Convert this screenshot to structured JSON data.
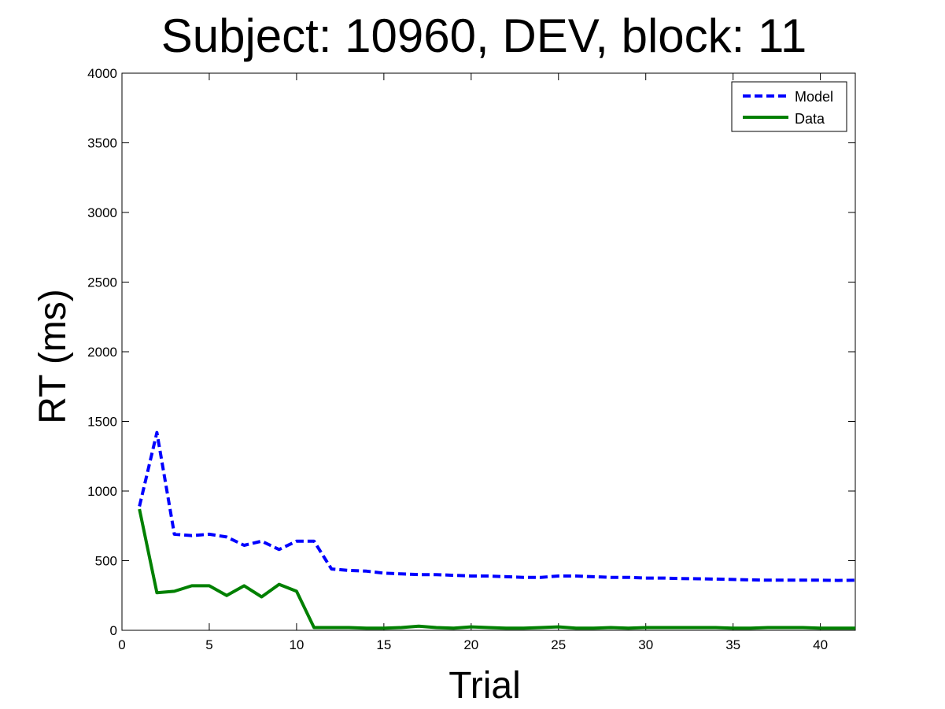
{
  "chart_data": {
    "type": "line",
    "title": "Subject: 10960, DEV, block: 11",
    "xlabel": "Trial",
    "ylabel": "RT (ms)",
    "xlim": [
      0,
      42
    ],
    "ylim": [
      0,
      4000
    ],
    "x_ticks": [
      0,
      5,
      10,
      15,
      20,
      25,
      30,
      35,
      40
    ],
    "y_ticks": [
      0,
      500,
      1000,
      1500,
      2000,
      2500,
      3000,
      3500,
      4000
    ],
    "grid": false,
    "legend_position": "top-right",
    "series": [
      {
        "name": "Model",
        "color": "#0000ff",
        "line_style": "dashed",
        "x": [
          1,
          2,
          3,
          4,
          5,
          6,
          7,
          8,
          9,
          10,
          11,
          12,
          13,
          14,
          15,
          16,
          17,
          18,
          19,
          20,
          21,
          22,
          23,
          24,
          25,
          26,
          27,
          28,
          29,
          30,
          31,
          32,
          33,
          34,
          35,
          36,
          37,
          38,
          39,
          40,
          41,
          42
        ],
        "values": [
          890,
          1420,
          690,
          680,
          690,
          670,
          610,
          640,
          580,
          640,
          640,
          440,
          430,
          425,
          410,
          405,
          400,
          400,
          395,
          390,
          390,
          385,
          380,
          380,
          390,
          390,
          385,
          380,
          380,
          375,
          375,
          372,
          370,
          368,
          365,
          362,
          360,
          360,
          360,
          360,
          358,
          360
        ]
      },
      {
        "name": "Data",
        "color": "#008000",
        "line_style": "solid",
        "x": [
          1,
          2,
          3,
          4,
          5,
          6,
          7,
          8,
          9,
          10,
          11,
          12,
          13,
          14,
          15,
          16,
          17,
          18,
          19,
          20,
          21,
          22,
          23,
          24,
          25,
          26,
          27,
          28,
          29,
          30,
          31,
          32,
          33,
          34,
          35,
          36,
          37,
          38,
          39,
          40,
          41,
          42
        ],
        "values": [
          870,
          270,
          280,
          320,
          320,
          250,
          320,
          240,
          330,
          280,
          20,
          20,
          20,
          15,
          15,
          20,
          30,
          20,
          15,
          25,
          20,
          15,
          15,
          20,
          25,
          15,
          15,
          20,
          15,
          20,
          20,
          20,
          20,
          20,
          15,
          15,
          20,
          20,
          20,
          15,
          15,
          15
        ]
      }
    ]
  }
}
